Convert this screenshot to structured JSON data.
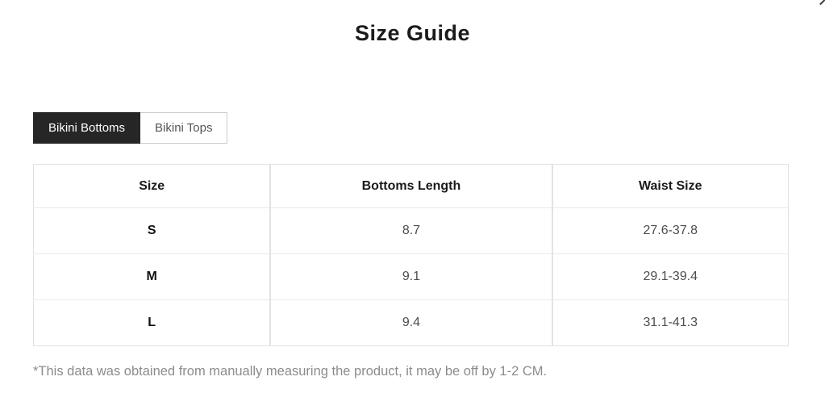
{
  "page": {
    "title": "Size Guide"
  },
  "tabs": [
    {
      "label": "Bikini Bottoms",
      "active": true
    },
    {
      "label": "Bikini Tops",
      "active": false
    }
  ],
  "table": {
    "headers": [
      "Size",
      "Bottoms Length",
      "Waist Size"
    ],
    "rows": [
      {
        "size": "S",
        "bottoms_length": "8.7",
        "waist_size": "27.6-37.8"
      },
      {
        "size": "M",
        "bottoms_length": "9.1",
        "waist_size": "29.1-39.4"
      },
      {
        "size": "L",
        "bottoms_length": "9.4",
        "waist_size": "31.1-41.3"
      }
    ]
  },
  "footnote": "*This data was obtained from manually measuring the product, it may be off by 1-2 CM.",
  "colors": {
    "tab_active_bg": "#262626",
    "tab_active_text": "#ffffff",
    "tab_inactive_border": "#cccccc",
    "tab_inactive_text": "#555555",
    "table_border": "#e0e0e0",
    "cell_text": "#4d4d4d",
    "footnote_text": "#8c8c8c"
  }
}
